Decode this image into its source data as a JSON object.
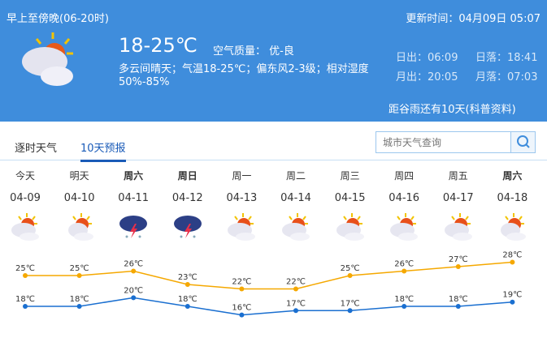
{
  "header": {
    "period": "早上至傍晚(06-20时)",
    "updated": "更新时间：04月09日 05:07",
    "temp": "18-25℃",
    "air_quality": "空气质量： 优-良",
    "description": "多云间晴天；气温18-25℃；偏东风2-3级；相对湿度",
    "humidity": "50%-85%",
    "sunrise": "日出：06:09",
    "sunset": "日落：18:41",
    "moonrise": "月出：20:05",
    "moonset": "月落：07:03",
    "solar_term": "距谷雨还有10天(科普资料)",
    "icon": "partly-cloudy-icon"
  },
  "tabs": [
    {
      "label": "逐时天气",
      "active": false
    },
    {
      "label": "10天预报",
      "active": true
    }
  ],
  "search": {
    "placeholder": "城市天气查询"
  },
  "colors": {
    "header": "#3f8ddc",
    "high": "#f5a800",
    "low": "#1a6fd0"
  },
  "chart_data": {
    "type": "line",
    "categories": [
      "04-09",
      "04-10",
      "04-11",
      "04-12",
      "04-13",
      "04-14",
      "04-15",
      "04-16",
      "04-17",
      "04-18"
    ],
    "series": [
      {
        "values": [
          25,
          25,
          26,
          23,
          22,
          22,
          25,
          26,
          27,
          28
        ],
        "labels": [
          "25℃",
          "25℃",
          "26℃",
          "23℃",
          "22℃",
          "22℃",
          "25℃",
          "26℃",
          "27℃",
          "28℃"
        ]
      },
      {
        "values": [
          18,
          18,
          20,
          18,
          16,
          17,
          17,
          18,
          18,
          19
        ],
        "labels": [
          "18℃",
          "18℃",
          "20℃",
          "18℃",
          "16℃",
          "17℃",
          "17℃",
          "18℃",
          "18℃",
          "19℃"
        ]
      }
    ]
  },
  "days": [
    {
      "name": "今天",
      "date": "04-09",
      "icon": "partly-cloudy",
      "bold": false
    },
    {
      "name": "明天",
      "date": "04-10",
      "icon": "sunny-cloudy",
      "bold": false
    },
    {
      "name": "周六",
      "date": "04-11",
      "icon": "thunderstorm",
      "bold": true
    },
    {
      "name": "周日",
      "date": "04-12",
      "icon": "thunderstorm",
      "bold": true
    },
    {
      "name": "周一",
      "date": "04-13",
      "icon": "partly-cloudy",
      "bold": false
    },
    {
      "name": "周二",
      "date": "04-14",
      "icon": "partly-cloudy",
      "bold": false
    },
    {
      "name": "周三",
      "date": "04-15",
      "icon": "partly-cloudy",
      "bold": false
    },
    {
      "name": "周四",
      "date": "04-16",
      "icon": "partly-cloudy",
      "bold": false
    },
    {
      "name": "周五",
      "date": "04-17",
      "icon": "partly-cloudy",
      "bold": false
    },
    {
      "name": "周六",
      "date": "04-18",
      "icon": "sunny-cloudy",
      "bold": true
    }
  ]
}
